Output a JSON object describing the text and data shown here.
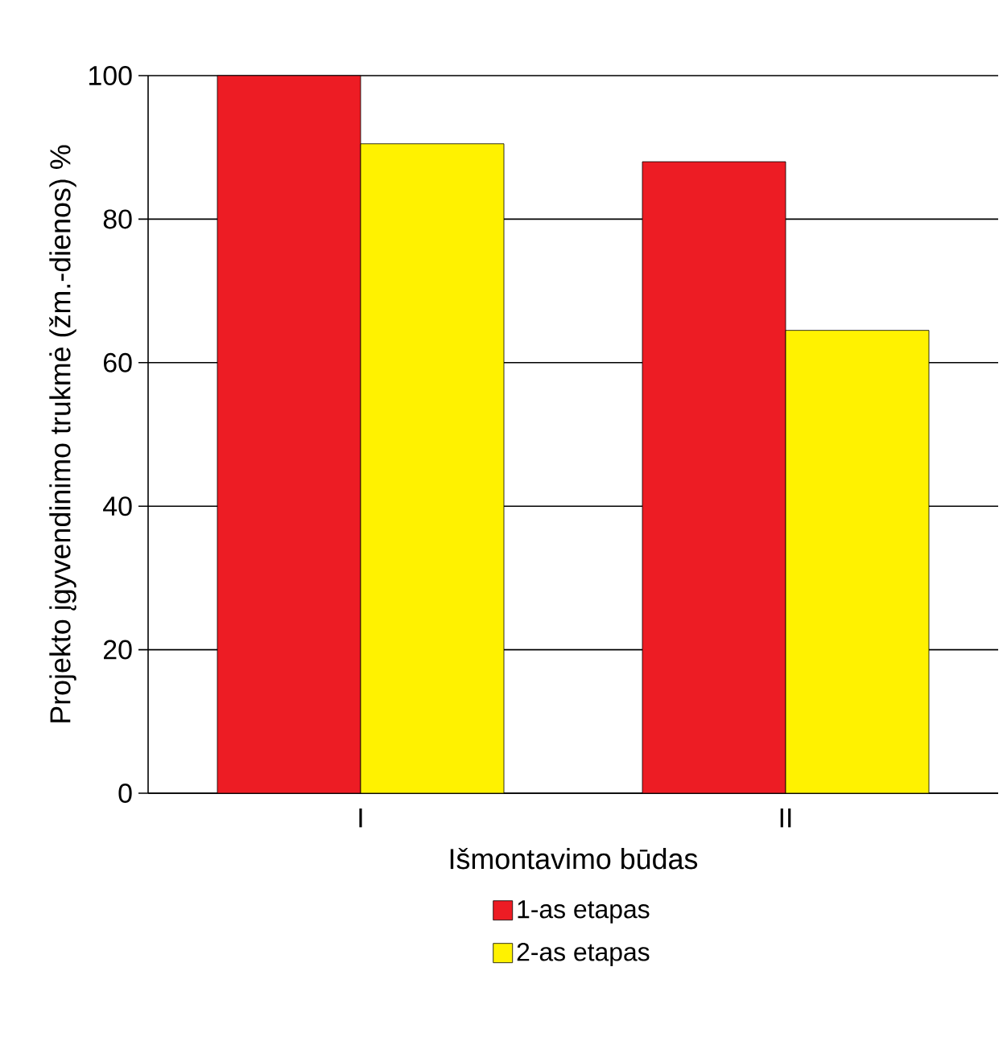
{
  "chart_data": {
    "type": "bar",
    "xlabel": "Išmontavimo būdas",
    "ylabel": "Projekto įgyvendinimo trukmė (žm.-dienos) %",
    "categories": [
      "I",
      "II"
    ],
    "series": [
      {
        "name": "1-as etapas",
        "color": "#ed1c24",
        "values": [
          100,
          88
        ]
      },
      {
        "name": "2-as etapas",
        "color": "#fff200",
        "values": [
          90.5,
          64.5
        ]
      }
    ],
    "ylim": [
      0,
      100
    ],
    "yticks": [
      0,
      20,
      40,
      60,
      80,
      100
    ],
    "grid": "y",
    "legend": "bottom"
  }
}
